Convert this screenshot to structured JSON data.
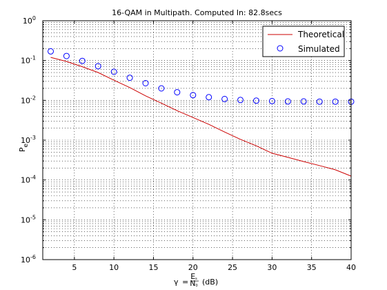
{
  "chart_data": {
    "type": "line",
    "title": "16-QAM in Multipath. Computed In: 82.8secs",
    "xlabel": {
      "gamma": "γ",
      "eq": "=",
      "num": "E",
      "num_sub": "s",
      "den": "N",
      "den_sub": "0",
      "unit": "(dB)"
    },
    "ylabel": {
      "main": "P",
      "sub": "e"
    },
    "x_scale": "linear",
    "y_scale": "log",
    "xlim": [
      1,
      40
    ],
    "ylim": [
      1e-06,
      1
    ],
    "xticks": [
      5,
      10,
      15,
      20,
      25,
      30,
      35,
      40
    ],
    "yticks": [
      {
        "value": 1e-06,
        "base": "10",
        "exp": "-6"
      },
      {
        "value": 1e-05,
        "base": "10",
        "exp": "-5"
      },
      {
        "value": 0.0001,
        "base": "10",
        "exp": "-4"
      },
      {
        "value": 0.001,
        "base": "10",
        "exp": "-3"
      },
      {
        "value": 0.01,
        "base": "10",
        "exp": "-2"
      },
      {
        "value": 0.1,
        "base": "10",
        "exp": "-1"
      },
      {
        "value": 1,
        "base": "10",
        "exp": "0"
      }
    ],
    "grid": true,
    "legend_position": "top-right",
    "series": [
      {
        "name": "Theoretical",
        "style": "line",
        "color": "#cc0000",
        "x": [
          2,
          4,
          6,
          8,
          10,
          12,
          14,
          16,
          18,
          20,
          22,
          24,
          26,
          28,
          30,
          32,
          34,
          36,
          38,
          40
        ],
        "y": [
          0.12,
          0.095,
          0.07,
          0.05,
          0.032,
          0.021,
          0.013,
          0.0085,
          0.0055,
          0.0037,
          0.0025,
          0.0016,
          0.00105,
          0.00072,
          0.00047,
          0.00037,
          0.00029,
          0.00023,
          0.00018,
          0.000125
        ]
      },
      {
        "name": "Simulated",
        "style": "marker-circle",
        "color": "#0000ff",
        "x": [
          2,
          4,
          6,
          8,
          10,
          12,
          14,
          16,
          18,
          20,
          22,
          24,
          26,
          28,
          30,
          32,
          34,
          36,
          38,
          40
        ],
        "y": [
          0.17,
          0.13,
          0.098,
          0.072,
          0.052,
          0.037,
          0.027,
          0.02,
          0.016,
          0.0135,
          0.012,
          0.0108,
          0.0102,
          0.0098,
          0.0096,
          0.0094,
          0.0094,
          0.0093,
          0.0093,
          0.0093
        ]
      }
    ]
  }
}
